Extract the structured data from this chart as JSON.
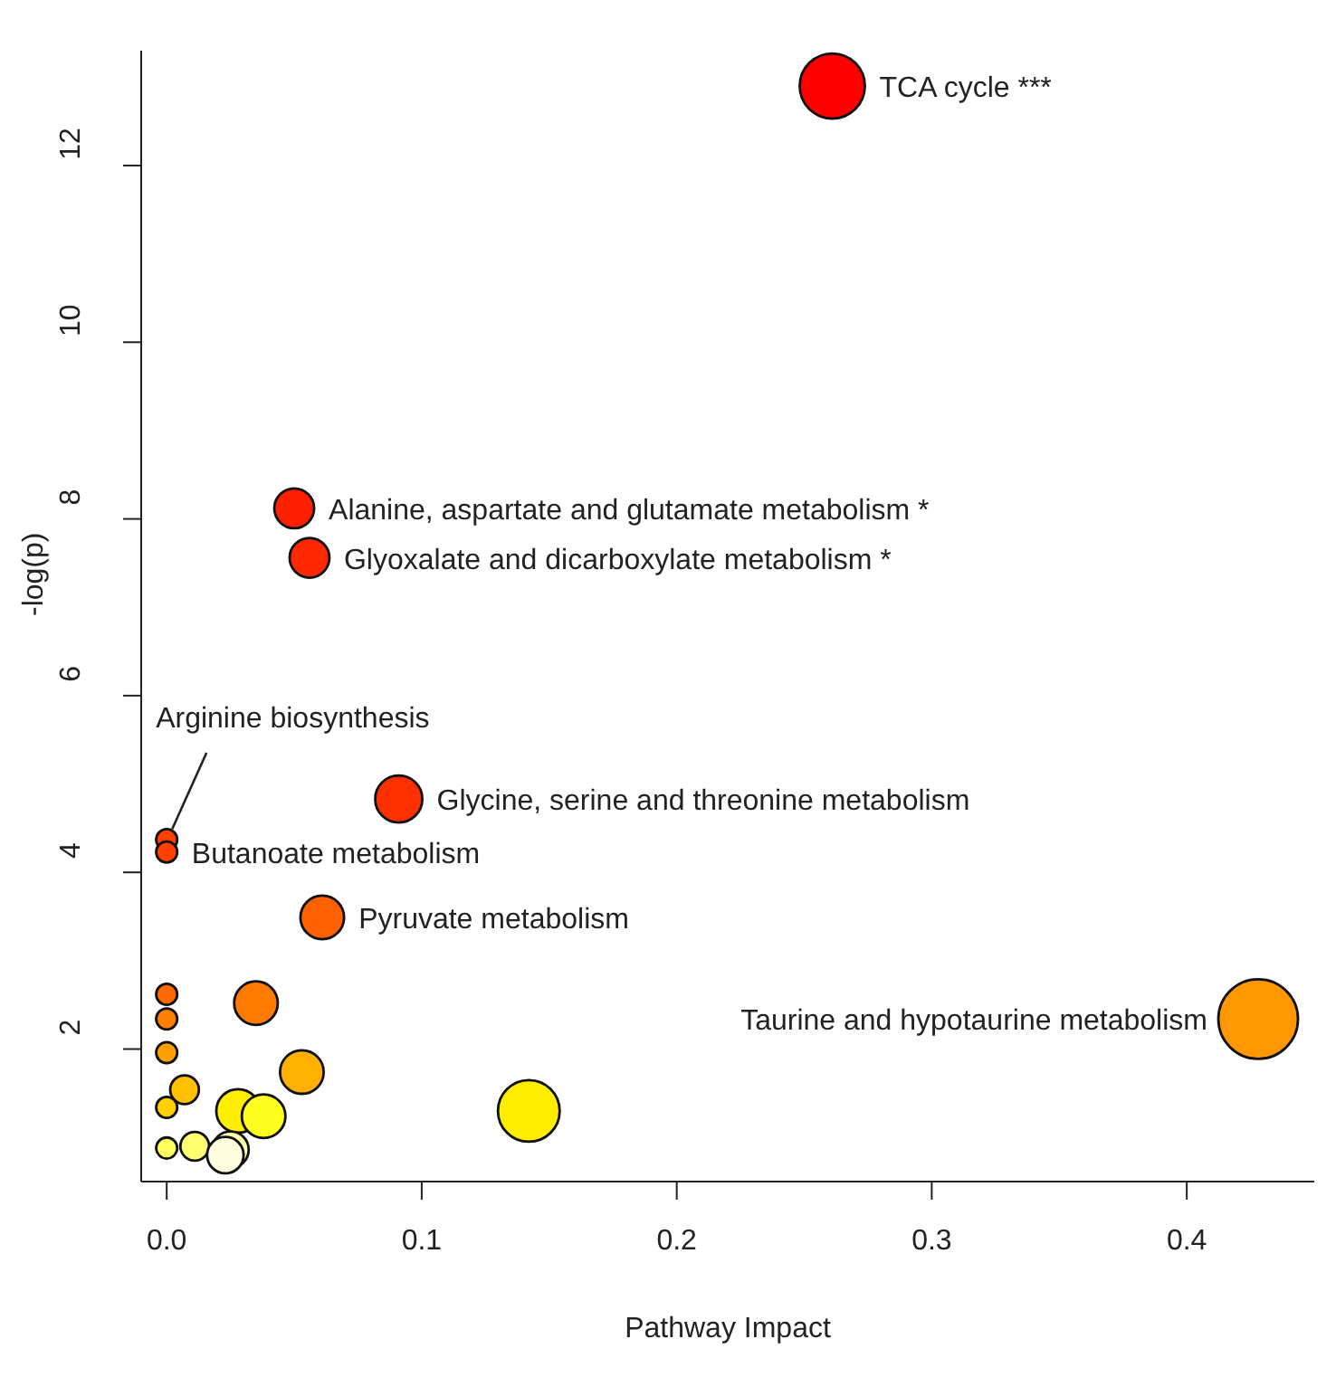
{
  "chart_data": {
    "type": "bubble",
    "xlabel": "Pathway Impact",
    "ylabel": "-log(p)",
    "x": [
      0.261,
      0.05,
      0.056,
      0.091,
      0,
      0,
      0.061,
      0.428,
      0,
      0,
      0,
      0.035,
      0.053,
      0.007,
      0,
      0.142,
      0.028,
      0.038,
      0,
      0.011,
      0.025,
      0.023
    ],
    "values": [
      12.9,
      8.12,
      7.56,
      4.83,
      4.37,
      4.23,
      3.49,
      2.34,
      2.62,
      2.34,
      1.96,
      2.52,
      1.74,
      1.54,
      1.34,
      1.3,
      1.3,
      1.24,
      0.88,
      0.9,
      0.86,
      0.8
    ],
    "sizes": [
      0.67,
      0.25,
      0.25,
      0.35,
      0.07,
      0.07,
      0.3,
      1,
      0.07,
      0.07,
      0.07,
      0.3,
      0.3,
      0.13,
      0.07,
      0.6,
      0.3,
      0.3,
      0.07,
      0.13,
      0.21,
      0.21
    ],
    "colors": [
      "#ff0000",
      "#ff2000",
      "#ff2800",
      "#ff3000",
      "#ff4000",
      "#ff4000",
      "#ff6000",
      "#ff9800",
      "#ff6a00",
      "#ff8000",
      "#ffa000",
      "#ff7a00",
      "#ffb000",
      "#ffc000",
      "#ffd000",
      "#ffee00",
      "#ffee00",
      "#ffff20",
      "#ffff60",
      "#ffff70",
      "#ffffb0",
      "#ffffe0"
    ],
    "xlim": [
      -0.01,
      0.45
    ],
    "xticks": [
      {
        "value": 0,
        "label": "0.0"
      },
      0.1,
      0.2,
      0.3,
      0.4
    ],
    "ylim": [
      0.5,
      13.3
    ],
    "yticks": [
      2,
      4,
      6,
      8,
      10,
      12
    ],
    "grid": false,
    "legend": false,
    "annotations": [
      {
        "text": "TCA cycle ***",
        "x": 0.261,
        "y": 12.9
      },
      {
        "text": "Alanine, aspartate and glutamate metabolism *",
        "x": 0.05,
        "y": 8.12
      },
      {
        "text": "Glyoxalate and dicarboxylate metabolism *",
        "x": 0.056,
        "y": 7.56
      },
      {
        "text": "Glycine, serine and threonine metabolism",
        "x": 0.091,
        "y": 4.83
      },
      {
        "text": "Butanoate metabolism",
        "x": 0,
        "y": 4.23
      },
      {
        "text": "Arginine biosynthesis",
        "x": 0,
        "y": 4.37
      },
      {
        "text": "Pyruvate metabolism",
        "x": 0.061,
        "y": 3.49
      },
      {
        "text": "Taurine and hypotaurine metabolism",
        "x": 0.428,
        "y": 2.34
      }
    ]
  }
}
